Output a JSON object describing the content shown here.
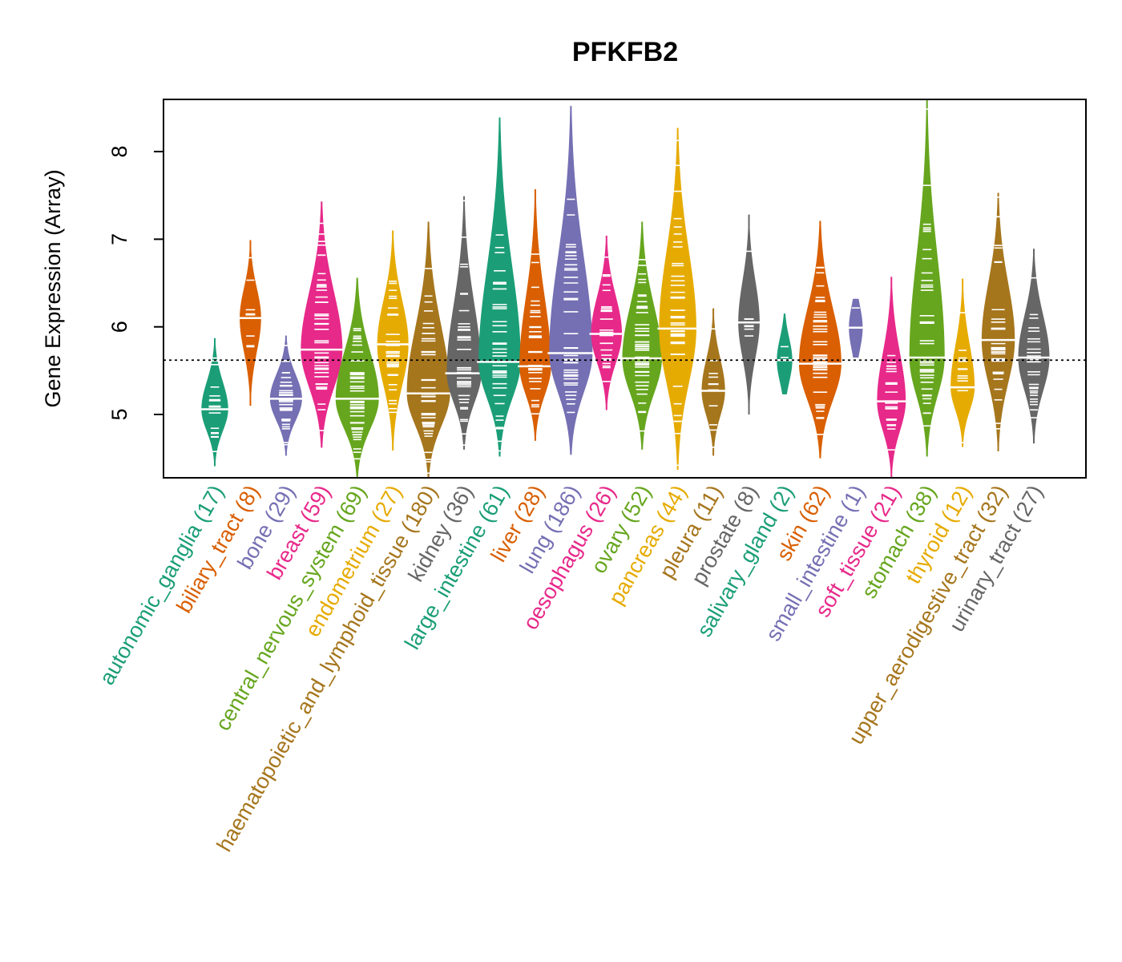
{
  "chart_data": {
    "type": "violin",
    "title": "PFKFB2",
    "xlabel": "",
    "ylabel": "Gene Expression (Array)",
    "ylim": [
      4.28,
      8.6
    ],
    "yticks": [
      5,
      6,
      7,
      8
    ],
    "ytick_labels": [
      "5",
      "6",
      "7",
      "8"
    ],
    "reference_line": 5.62,
    "grid": false,
    "legend": "none",
    "categories": [
      {
        "name": "autonomic_ganglia",
        "n": 17,
        "label": "autonomic_ganglia (17)",
        "color": "#1B9E77",
        "min": 4.41,
        "max": 5.87,
        "median": 5.06
      },
      {
        "name": "biliary_tract",
        "n": 8,
        "label": "biliary_tract (8)",
        "color": "#D95F02",
        "min": 5.1,
        "max": 6.99,
        "median": 6.1
      },
      {
        "name": "bone",
        "n": 29,
        "label": "bone (29)",
        "color": "#7570B3",
        "min": 4.53,
        "max": 5.9,
        "median": 5.18
      },
      {
        "name": "breast",
        "n": 59,
        "label": "breast (59)",
        "color": "#E7298A",
        "min": 4.62,
        "max": 7.43,
        "median": 5.74
      },
      {
        "name": "central_nervous_system",
        "n": 69,
        "label": "central_nervous_system (69)",
        "color": "#66A61E",
        "min": 4.28,
        "max": 6.56,
        "median": 5.18
      },
      {
        "name": "endometrium",
        "n": 27,
        "label": "endometrium (27)",
        "color": "#E6AB02",
        "min": 4.59,
        "max": 7.1,
        "median": 5.8
      },
      {
        "name": "haematopoietic_and_lymphoid_tissue",
        "n": 180,
        "label": "haematopoietic_and_lymphoid_tissue (180)",
        "color": "#A6761D",
        "min": 4.28,
        "max": 7.2,
        "median": 5.24
      },
      {
        "name": "kidney",
        "n": 36,
        "label": "kidney (36)",
        "color": "#666666",
        "min": 4.6,
        "max": 7.49,
        "median": 5.47
      },
      {
        "name": "large_intestine",
        "n": 61,
        "label": "large_intestine (61)",
        "color": "#1B9E77",
        "min": 4.52,
        "max": 8.39,
        "median": 5.6
      },
      {
        "name": "liver",
        "n": 28,
        "label": "liver (28)",
        "color": "#D95F02",
        "min": 4.7,
        "max": 7.57,
        "median": 5.55
      },
      {
        "name": "lung",
        "n": 186,
        "label": "lung (186)",
        "color": "#7570B3",
        "min": 4.54,
        "max": 8.52,
        "median": 5.7
      },
      {
        "name": "oesophagus",
        "n": 26,
        "label": "oesophagus (26)",
        "color": "#E7298A",
        "min": 5.05,
        "max": 7.04,
        "median": 5.92
      },
      {
        "name": "ovary",
        "n": 52,
        "label": "ovary (52)",
        "color": "#66A61E",
        "min": 4.6,
        "max": 7.2,
        "median": 5.64
      },
      {
        "name": "pancreas",
        "n": 44,
        "label": "pancreas (44)",
        "color": "#E6AB02",
        "min": 4.37,
        "max": 8.27,
        "median": 5.98
      },
      {
        "name": "pleura",
        "n": 11,
        "label": "pleura (11)",
        "color": "#A6761D",
        "min": 4.53,
        "max": 6.21,
        "median": 5.27
      },
      {
        "name": "prostate",
        "n": 8,
        "label": "prostate (8)",
        "color": "#666666",
        "min": 5.0,
        "max": 7.28,
        "median": 6.05
      },
      {
        "name": "salivary_gland",
        "n": 2,
        "label": "salivary_gland (2)",
        "color": "#1B9E77",
        "min": 5.23,
        "max": 6.15,
        "median": 5.62
      },
      {
        "name": "skin",
        "n": 62,
        "label": "skin (62)",
        "color": "#D95F02",
        "min": 4.5,
        "max": 7.21,
        "median": 5.58
      },
      {
        "name": "small_intestine",
        "n": 1,
        "label": "small_intestine (1)",
        "color": "#7570B3",
        "min": 5.65,
        "max": 6.32,
        "median": 5.99
      },
      {
        "name": "soft_tissue",
        "n": 21,
        "label": "soft_tissue (21)",
        "color": "#E7298A",
        "min": 4.28,
        "max": 6.57,
        "median": 5.15
      },
      {
        "name": "stomach",
        "n": 38,
        "label": "stomach (38)",
        "color": "#66A61E",
        "min": 4.52,
        "max": 8.6,
        "median": 5.65
      },
      {
        "name": "thyroid",
        "n": 12,
        "label": "thyroid (12)",
        "color": "#E6AB02",
        "min": 4.63,
        "max": 6.55,
        "median": 5.31
      },
      {
        "name": "upper_aerodigestive_tract",
        "n": 32,
        "label": "upper_aerodigestive_tract (32)",
        "color": "#A6761D",
        "min": 4.58,
        "max": 7.53,
        "median": 5.85
      },
      {
        "name": "urinary_tract",
        "n": 27,
        "label": "urinary_tract (27)",
        "color": "#666666",
        "min": 4.67,
        "max": 6.89,
        "median": 5.65
      }
    ]
  }
}
